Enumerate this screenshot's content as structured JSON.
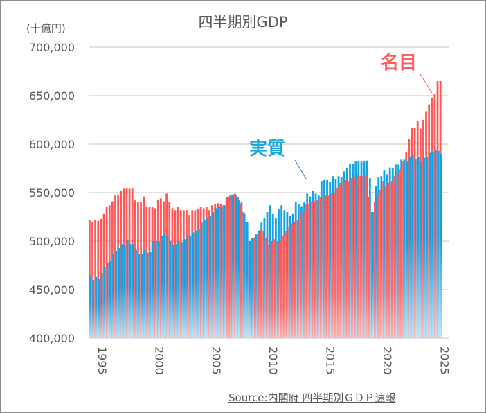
{
  "chart_data": {
    "type": "bar",
    "title": "四半期別GDP",
    "ylabel": "(十億円)",
    "xlabel": "",
    "ylim": [
      400000,
      700000
    ],
    "yticks": [
      400000,
      450000,
      500000,
      550000,
      600000,
      650000,
      700000
    ],
    "ytick_labels": [
      "400,000",
      "450,000",
      "500,000",
      "550,000",
      "600,000",
      "650,000",
      "700,000"
    ],
    "xtick_labels": [
      "1995",
      "2000",
      "2005",
      "2010",
      "2015",
      "2020",
      "2025"
    ],
    "xtick_years": [
      1995,
      2000,
      2005,
      2010,
      2015,
      2020,
      2025
    ],
    "start": "1994Q1",
    "grid": true,
    "legend": "inline annotations",
    "source": "Source:内閣府 四半期別ＧＤＰ速報",
    "series": [
      {
        "name": "名目",
        "color": "#ff5b5b",
        "values": [
          522000,
          520000,
          522000,
          521000,
          523000,
          528000,
          535000,
          537000,
          541000,
          547000,
          547000,
          552000,
          554000,
          555000,
          554000,
          555000,
          542000,
          540000,
          540000,
          546000,
          536000,
          535000,
          535000,
          534000,
          543000,
          544000,
          541000,
          549000,
          540000,
          534000,
          532000,
          535000,
          532000,
          532000,
          532000,
          527000,
          532000,
          532000,
          533000,
          535000,
          534000,
          535000,
          532000,
          537000,
          538000,
          539000,
          538000,
          537000,
          544000,
          546000,
          548000,
          549000,
          545000,
          538000,
          530000,
          520000,
          500000,
          503000,
          504000,
          507000,
          512000,
          510000,
          503000,
          496000,
          500000,
          502000,
          500000,
          500000,
          506000,
          510000,
          514000,
          518000,
          520000,
          522000,
          528000,
          531000,
          538000,
          538000,
          540000,
          541000,
          542000,
          545000,
          546000,
          547000,
          547000,
          550000,
          550000,
          555000,
          560000,
          561000,
          563000,
          562000,
          565000,
          566000,
          568000,
          567000,
          567000,
          568000,
          545000,
          530000,
          540000,
          548000,
          553000,
          562000,
          557000,
          560000,
          562000,
          567000,
          570000,
          574000,
          582000,
          592000,
          605000,
          617000,
          617000,
          624000,
          616000,
          625000,
          634000,
          641000,
          648000,
          652000,
          665000,
          665000
        ],
        "note": "annotation label '名目' with leader line"
      },
      {
        "name": "実質",
        "color": "#1aa7e0",
        "values": [
          465000,
          460000,
          463000,
          461000,
          467000,
          473000,
          478000,
          480000,
          487000,
          490000,
          493000,
          497000,
          496000,
          501000,
          497000,
          497000,
          491000,
          487000,
          487000,
          491000,
          488000,
          489000,
          500000,
          500000,
          500000,
          505000,
          507000,
          505000,
          500000,
          496000,
          497000,
          500000,
          499000,
          502000,
          505000,
          506000,
          509000,
          510000,
          513000,
          519000,
          522000,
          524000,
          526000,
          530000,
          534000,
          535000,
          536000,
          537000,
          545000,
          547000,
          548000,
          547000,
          542000,
          540000,
          528000,
          520000,
          500000,
          503000,
          507000,
          511000,
          519000,
          524000,
          530000,
          537000,
          528000,
          524000,
          533000,
          537000,
          532000,
          530000,
          526000,
          528000,
          540000,
          538000,
          536000,
          540000,
          549000,
          546000,
          552000,
          549000,
          547000,
          562000,
          563000,
          563000,
          561000,
          567000,
          564000,
          567000,
          566000,
          572000,
          575000,
          580000,
          580000,
          582000,
          583000,
          582000,
          582000,
          583000,
          565000,
          530000,
          557000,
          566000,
          567000,
          573000,
          569000,
          576000,
          575000,
          579000,
          579000,
          584000,
          584000,
          583000,
          587000,
          589000,
          585000,
          587000,
          582000,
          586000,
          587000,
          591000,
          592000,
          594000,
          593000,
          590000
        ],
        "note": "annotation label '実質' with leader line"
      }
    ]
  }
}
